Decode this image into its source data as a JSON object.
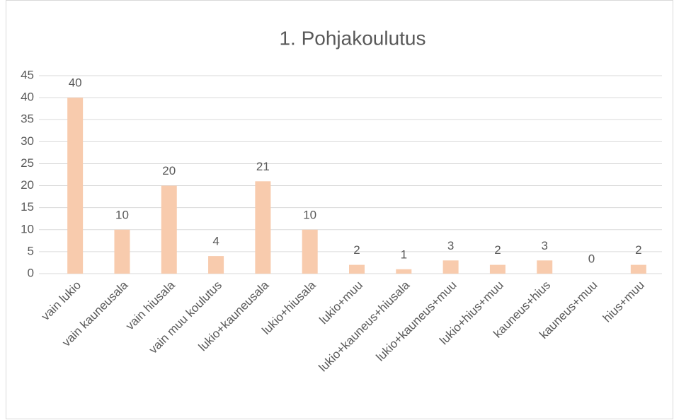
{
  "chart_data": {
    "type": "bar",
    "title": "1. Pohjakoulutus",
    "categories": [
      "vain lukio",
      "vain kauneusala",
      "vain hiusala",
      "vain muu koulutus",
      "lukio+kauneusala",
      "lukio+hiusala",
      "lukio+muu",
      "lukio+kauneus+hiusala",
      "lukio+kauneus+muu",
      "lukio+hius+muu",
      "kauneus+hius",
      "kauneus+muu",
      "hius+muu"
    ],
    "values": [
      40,
      10,
      20,
      4,
      21,
      10,
      2,
      1,
      3,
      2,
      3,
      0,
      2
    ],
    "color": "#f8cbad",
    "ylim": [
      0,
      45
    ],
    "yticks": [
      0,
      5,
      10,
      15,
      20,
      25,
      30,
      35,
      40,
      45
    ],
    "grid": true,
    "data_labels": true
  }
}
